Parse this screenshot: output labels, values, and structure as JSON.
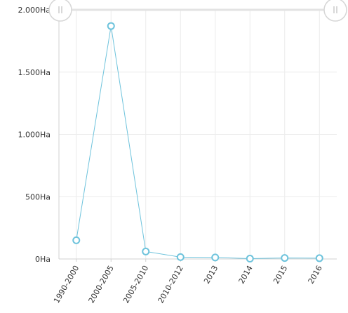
{
  "chart_data": {
    "type": "line",
    "categories": [
      "1990-2000",
      "2000-2005",
      "2005-2010",
      "2010-2012",
      "2013",
      "2014",
      "2015",
      "2016"
    ],
    "series": [
      {
        "values": [
          150,
          1870,
          60,
          15,
          12,
          3,
          8,
          6
        ],
        "color": "#6ec3dc"
      }
    ],
    "y_ticks": [
      {
        "value": 0,
        "label": "0Ha"
      },
      {
        "value": 500,
        "label": "500Ha"
      },
      {
        "value": 1000,
        "label": "1.000Ha"
      },
      {
        "value": 1500,
        "label": "1.500Ha"
      },
      {
        "value": 2000,
        "label": "2.000Ha"
      }
    ],
    "ylim": [
      0,
      2000
    ],
    "grid": true,
    "legend": "none",
    "scrollbar": {
      "start_handle_icon": "drag-handle-icon",
      "end_handle_icon": "drag-handle-icon"
    }
  }
}
